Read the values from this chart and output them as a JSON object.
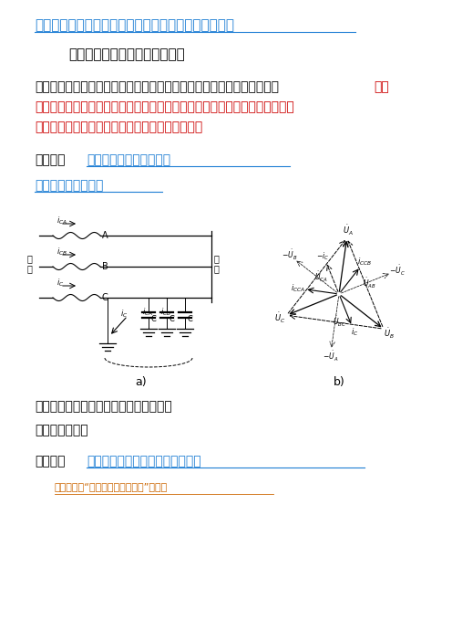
{
  "title": "电力系统的中性点运行方式及低压配电系统的接地型式",
  "title_color": "#1E7ED4",
  "section1_heading": "一、电力系统的中性点运行方式",
  "para_black": "电力系统中的电源（含发电机和电力变压器）中性点有下三种运行方式：",
  "para_red_end": "一种",
  "para_red_line2": "是中性点不接地；一种是中性点经阵抗接地；再一种是中性点直接接地。前两",
  "para_red_line3": "种一般合称为小电流接地；后一种称为电流接地。",
  "subsection1_prefix": "（一）、",
  "subsection1_link": "中性点不接地的电力系统",
  "link1": "分布电容及相间电容",
  "diagram_caption_a": "a)",
  "diagram_caption_b": "b)",
  "fault_caption": "发生单相接地故障时的中性点不接地系统",
  "analysis_caption": "分析见教材原件",
  "subsection2_prefix": "（二）、",
  "subsection2_link": "中性点经消弧线圈接地的电力系统",
  "link2": "对消弧线圈“消除系统接地过电压”的异议",
  "bg_color": "#FFFFFF",
  "text_black": "#000000",
  "text_red": "#CC0000",
  "text_blue": "#1E7ED4",
  "text_orange": "#CC6600",
  "fs_title": 11,
  "fs_heading": 11,
  "fs_body": 10,
  "fs_small": 8
}
